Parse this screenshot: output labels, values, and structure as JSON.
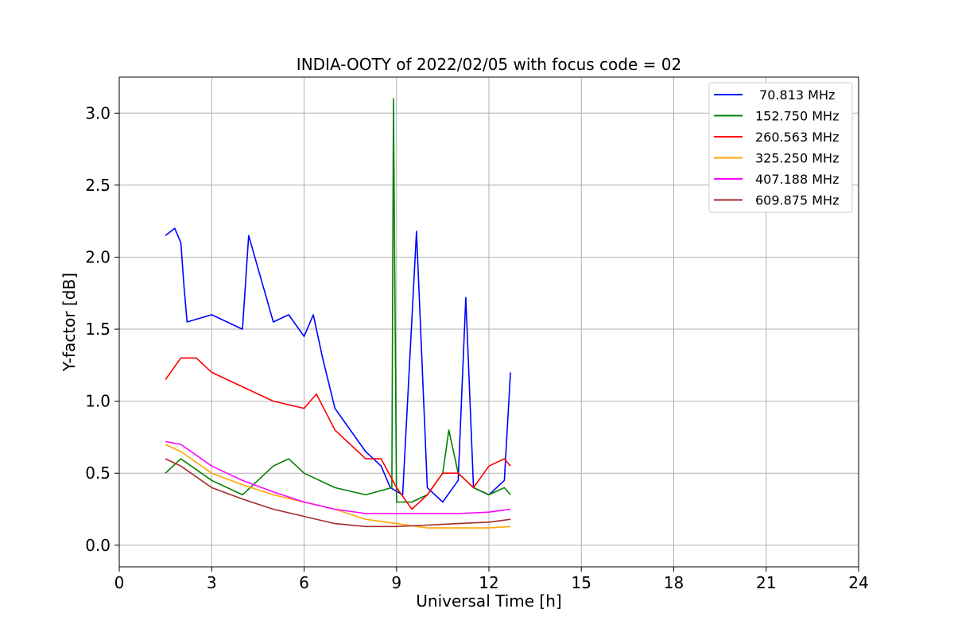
{
  "chart_data": {
    "type": "line",
    "title": "INDIA-OOTY of 2022/02/05 with focus code = 02",
    "xlabel": "Universal Time [h]",
    "ylabel": "Y-factor [dB]",
    "xlim": [
      0,
      24
    ],
    "ylim": [
      -0.15,
      3.25
    ],
    "xticks": [
      0,
      3,
      6,
      9,
      12,
      15,
      18,
      21,
      24
    ],
    "xtick_labels": [
      "0",
      "3",
      "6",
      "9",
      "12",
      "15",
      "18",
      "21",
      "24"
    ],
    "yticks": [
      0.0,
      0.5,
      1.0,
      1.5,
      2.0,
      2.5,
      3.0
    ],
    "ytick_labels": [
      "0.0",
      "0.5",
      "1.0",
      "1.5",
      "2.0",
      "2.5",
      "3.0"
    ],
    "grid": true,
    "legend_position": "top-right",
    "series": [
      {
        "name": " 70.813 MHz",
        "color": "#0000ff",
        "x": [
          1.5,
          1.8,
          2.0,
          2.1,
          2.2,
          3.0,
          4.0,
          4.2,
          5.0,
          5.5,
          6.0,
          6.3,
          6.6,
          7.0,
          7.5,
          8.0,
          8.5,
          8.8,
          9.2,
          9.65,
          10.0,
          10.5,
          11.0,
          11.25,
          11.5,
          12.0,
          12.5,
          12.7
        ],
        "y": [
          2.15,
          2.2,
          2.1,
          1.8,
          1.55,
          1.6,
          1.5,
          2.15,
          1.55,
          1.6,
          1.45,
          1.6,
          1.3,
          0.95,
          0.8,
          0.65,
          0.55,
          0.4,
          0.35,
          2.18,
          0.4,
          0.3,
          0.45,
          1.72,
          0.4,
          0.35,
          0.45,
          1.2
        ]
      },
      {
        "name": "152.750 MHz",
        "color": "#008000",
        "x": [
          1.5,
          2.0,
          3.0,
          4.0,
          4.5,
          5.0,
          5.5,
          6.0,
          6.5,
          7.0,
          8.0,
          8.85,
          8.9,
          9.0,
          9.5,
          10.0,
          10.5,
          10.7,
          11.0,
          11.5,
          12.0,
          12.5,
          12.7
        ],
        "y": [
          0.5,
          0.6,
          0.45,
          0.35,
          0.45,
          0.55,
          0.6,
          0.5,
          0.45,
          0.4,
          0.35,
          0.4,
          3.1,
          0.3,
          0.3,
          0.35,
          0.5,
          0.8,
          0.5,
          0.4,
          0.35,
          0.4,
          0.35
        ]
      },
      {
        "name": "260.563 MHz",
        "color": "#ff0000",
        "x": [
          1.5,
          2.0,
          2.5,
          3.0,
          4.0,
          5.0,
          6.0,
          6.4,
          7.0,
          7.5,
          8.0,
          8.5,
          9.0,
          9.5,
          10.0,
          10.5,
          11.0,
          11.5,
          12.0,
          12.5,
          12.7
        ],
        "y": [
          1.15,
          1.3,
          1.3,
          1.2,
          1.1,
          1.0,
          0.95,
          1.05,
          0.8,
          0.7,
          0.6,
          0.6,
          0.4,
          0.25,
          0.35,
          0.5,
          0.5,
          0.4,
          0.55,
          0.6,
          0.55
        ]
      },
      {
        "name": "325.250 MHz",
        "color": "#ffa500",
        "x": [
          1.5,
          2.0,
          3.0,
          4.0,
          5.0,
          6.0,
          7.0,
          8.0,
          9.0,
          10.0,
          11.0,
          12.0,
          12.7
        ],
        "y": [
          0.7,
          0.65,
          0.5,
          0.42,
          0.35,
          0.3,
          0.25,
          0.18,
          0.15,
          0.12,
          0.12,
          0.12,
          0.13
        ]
      },
      {
        "name": "407.188 MHz",
        "color": "#ff00ff",
        "x": [
          1.5,
          2.0,
          3.0,
          4.0,
          5.0,
          6.0,
          7.0,
          8.0,
          9.0,
          10.0,
          11.0,
          12.0,
          12.7
        ],
        "y": [
          0.72,
          0.7,
          0.55,
          0.45,
          0.37,
          0.3,
          0.25,
          0.22,
          0.22,
          0.22,
          0.22,
          0.23,
          0.25
        ]
      },
      {
        "name": "609.875 MHz",
        "color": "#a52a2a",
        "x": [
          1.5,
          2.0,
          3.0,
          4.0,
          5.0,
          6.0,
          7.0,
          8.0,
          9.0,
          10.0,
          11.0,
          12.0,
          12.7
        ],
        "y": [
          0.6,
          0.55,
          0.4,
          0.32,
          0.25,
          0.2,
          0.15,
          0.13,
          0.13,
          0.14,
          0.15,
          0.16,
          0.18
        ]
      }
    ]
  }
}
